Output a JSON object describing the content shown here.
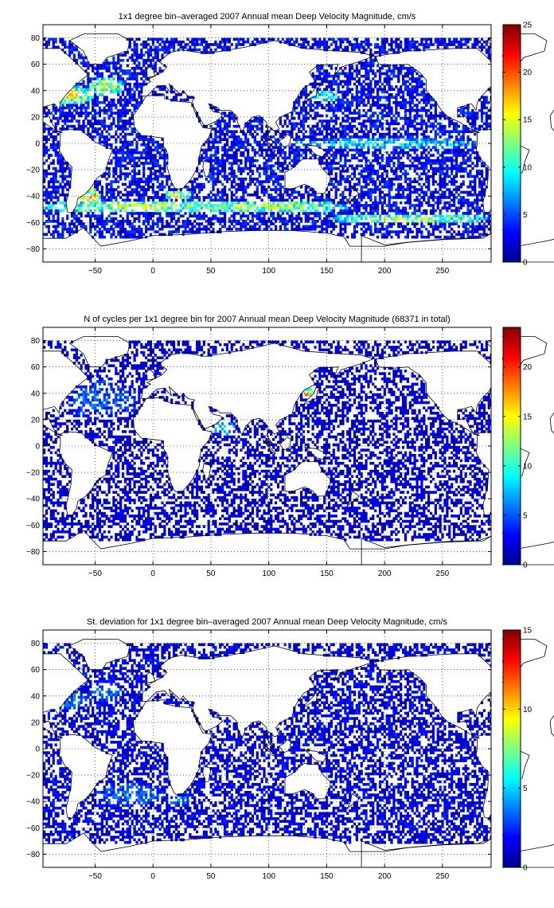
{
  "chart_data": [
    {
      "type": "heatmap",
      "title": "1x1 degree bin–averaged 2007 Annual mean Deep Velocity Magnitude, cm/s",
      "xlabel": "",
      "ylabel": "",
      "xlim": [
        -95,
        292
      ],
      "ylim": [
        -90,
        90
      ],
      "x_ticks": [
        "−50",
        "0",
        "50",
        "100",
        "150",
        "200",
        "250"
      ],
      "y_ticks": [
        "80",
        "60",
        "40",
        "20",
        "0",
        "−20",
        "−40",
        "−60",
        "−80"
      ],
      "colorbar": {
        "colormap": "jet",
        "range": [
          0,
          25
        ],
        "ticks": [
          "25",
          "20",
          "15",
          "10",
          "5",
          "0"
        ]
      },
      "grid": true,
      "cell_density": 0.62,
      "field_values_per_region": [
        {
          "region": "ocean-background",
          "value": 3
        },
        {
          "region": "gulf-stream",
          "value": 16
        },
        {
          "region": "kuroshio",
          "value": 12
        },
        {
          "region": "antarctic-circumpolar-current",
          "value": 15
        },
        {
          "region": "agulhas-retroflection",
          "value": 18
        },
        {
          "region": "equatorial-pacific",
          "value": 10
        },
        {
          "region": "brazil-malvinas-confluence",
          "value": 19
        }
      ]
    },
    {
      "type": "heatmap",
      "title": "N of cycles per 1x1 degree bin for 2007 Annual mean Deep Velocity Magnitude (68371 in total)",
      "xlabel": "",
      "ylabel": "",
      "xlim": [
        -95,
        292
      ],
      "ylim": [
        -90,
        90
      ],
      "x_ticks": [
        "−50",
        "0",
        "50",
        "100",
        "150",
        "200",
        "250"
      ],
      "y_ticks": [
        "80",
        "60",
        "40",
        "20",
        "0",
        "−20",
        "−40",
        "−60",
        "−80"
      ],
      "colorbar": {
        "colormap": "jet",
        "range": [
          0,
          24
        ],
        "ticks": [
          "20",
          "15",
          "10",
          "5",
          "0"
        ]
      },
      "grid": true,
      "cell_density": 0.5,
      "field_values_per_region": [
        {
          "region": "ocean-background",
          "value": 2
        },
        {
          "region": "north-atlantic",
          "value": 6
        },
        {
          "region": "arabian-sea",
          "value": 10
        },
        {
          "region": "japan-sea",
          "value": 20
        }
      ]
    },
    {
      "type": "heatmap",
      "title": "St. deviation for 1x1 degree bin–averaged 2007 Annual mean Deep Velocity Magnitude, cm/s",
      "xlabel": "",
      "ylabel": "",
      "xlim": [
        -95,
        292
      ],
      "ylim": [
        -90,
        90
      ],
      "x_ticks": [
        "−50",
        "0",
        "50",
        "100",
        "150",
        "200",
        "250"
      ],
      "y_ticks": [
        "80",
        "60",
        "40",
        "20",
        "0",
        "−20",
        "−40",
        "−60",
        "−80"
      ],
      "colorbar": {
        "colormap": "jet",
        "range": [
          0,
          15
        ],
        "ticks": [
          "15",
          "10",
          "5",
          "0"
        ]
      },
      "grid": true,
      "cell_density": 0.55,
      "field_values_per_region": [
        {
          "region": "ocean-background",
          "value": 1.5
        },
        {
          "region": "gulf-stream",
          "value": 4
        },
        {
          "region": "agulhas-retroflection",
          "value": 5
        },
        {
          "region": "south-atlantic",
          "value": 4
        }
      ]
    }
  ]
}
